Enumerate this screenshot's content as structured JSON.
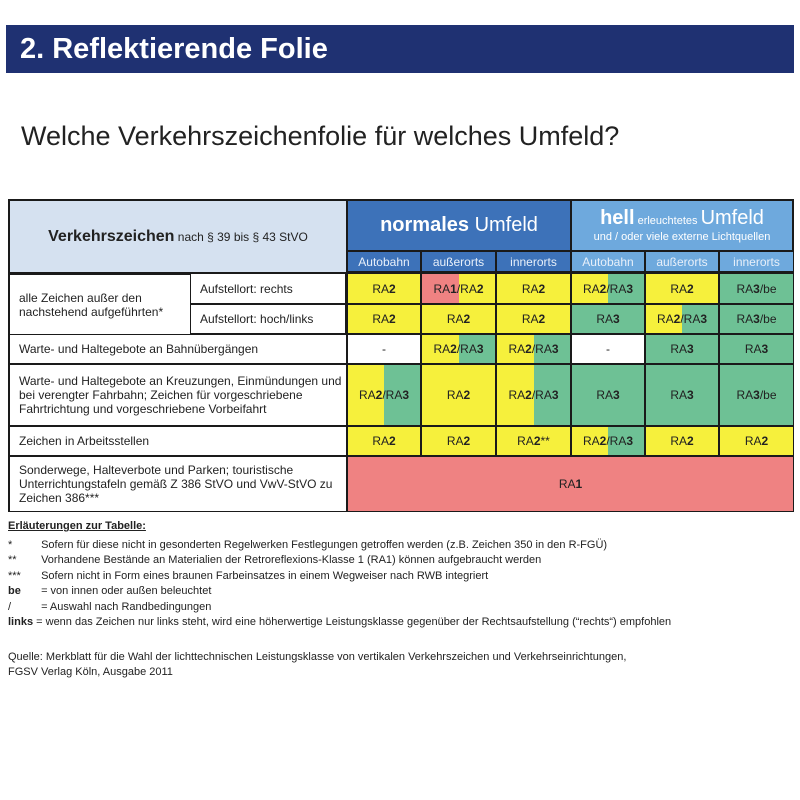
{
  "title": "2. Reflektierende Folie",
  "subtitle": "Welche Verkehrszeichenfolie für welches Umfeld?",
  "colors": {
    "yellow": "#f6f03c",
    "green": "#6ec195",
    "red": "#ef8282",
    "white": "#ffffff",
    "title_bar": "#1f3172",
    "normal_header": "#3d72b9",
    "bright_header": "#6ea9dd",
    "left_header": "#d5e1f0"
  },
  "table": {
    "header": {
      "main_bold": "Verkehrszeichen",
      "main_rest": " nach § 39 bis § 43 StVO",
      "normal_bold": "normales",
      "normal_rest": " Umfeld",
      "bright_bold": "hell",
      "bright_small": " erleuchtetes ",
      "bright_rest": "Umfeld",
      "bright_line2": "und / oder viele externe Lichtquellen",
      "columns": [
        "Autobahn",
        "außerorts",
        "innerorts",
        "Autobahn",
        "außerorts",
        "innerorts"
      ]
    },
    "group_label": "alle Zeichen außer den nachstehend aufgeführten*",
    "rows": [
      {
        "label": "Aufstellort: rechts",
        "cells": [
          [
            "RA2",
            "y"
          ],
          [
            "RA1/RA2",
            "r/y"
          ],
          [
            "RA2",
            "y"
          ],
          [
            "RA2/RA3",
            "y/g"
          ],
          [
            "RA2",
            "y"
          ],
          [
            "RA3/be",
            "g"
          ]
        ]
      },
      {
        "label": "Aufstellort: hoch/links",
        "cells": [
          [
            "RA2",
            "y"
          ],
          [
            "RA2",
            "y"
          ],
          [
            "RA2",
            "y"
          ],
          [
            "RA3",
            "g"
          ],
          [
            "RA2/RA3",
            "y/g"
          ],
          [
            "RA3/be",
            "g"
          ]
        ]
      },
      {
        "label": "Warte- und Haltegebote an Bahnübergängen",
        "cells": [
          [
            "-",
            "w"
          ],
          [
            "RA2/RA3",
            "y/g"
          ],
          [
            "RA2/RA3",
            "y/g"
          ],
          [
            "-",
            "w"
          ],
          [
            "RA3",
            "g"
          ],
          [
            "RA3",
            "g"
          ]
        ]
      },
      {
        "label": "Warte- und Haltegebote an Kreuzungen, Einmündungen und bei verengter Fahrbahn; Zeichen für vorgeschriebene Fahrtrichtung und vorgeschriebene Vorbeifahrt",
        "cells": [
          [
            "RA2/RA3",
            "y/g"
          ],
          [
            "RA2",
            "y"
          ],
          [
            "RA2/RA3",
            "y/g"
          ],
          [
            "RA3",
            "g"
          ],
          [
            "RA3",
            "g"
          ],
          [
            "RA3/be",
            "g"
          ]
        ]
      },
      {
        "label": "Zeichen in Arbeitsstellen",
        "cells": [
          [
            "RA2",
            "y"
          ],
          [
            "RA2",
            "y"
          ],
          [
            "RA2**",
            "y"
          ],
          [
            "RA2/RA3",
            "y/g"
          ],
          [
            "RA2",
            "y"
          ],
          [
            "RA2",
            "y"
          ]
        ]
      },
      {
        "label": "Sonderwege, Halteverbote und Parken; touristische Unterrichtungstafeln gemäß Z 386 StVO und VwV-StVO zu Zeichen 386***",
        "cells": [
          [
            "RA1",
            "r"
          ]
        ]
      }
    ]
  },
  "notes": {
    "heading": "Erläuterungen zur Tabelle:",
    "items": [
      {
        "key": "*",
        "text": "Sofern für diese nicht in gesonderten Regelwerken Festlegungen getroffen werden (z.B. Zeichen 350 in den R-FGÜ)"
      },
      {
        "key": "**",
        "text": "Vorhandene Bestände an Materialien der Retroreflexions-Klasse 1 (RA1) können aufgebraucht werden"
      },
      {
        "key": "***",
        "text": "Sofern nicht in Form eines braunen Farbeinsatzes in einem Wegweiser nach RWB integriert"
      },
      {
        "key": "be",
        "text": "= von innen oder außen beleuchtet"
      },
      {
        "key": "/",
        "text": "= Auswahl nach Randbedingungen"
      },
      {
        "key": "links",
        "text": "= wenn das Zeichen nur links steht, wird eine höherwertige Leistungsklasse gegenüber der Rechtsaufstellung (“rechts“) empfohlen"
      }
    ]
  },
  "source": {
    "line1": "Quelle: Merkblatt für die Wahl der lichttechnischen Leistungsklasse von vertikalen Verkehrszeichen und Verkehrseinrichtungen,",
    "line2": "FGSV Verlag Köln, Ausgabe 2011"
  }
}
